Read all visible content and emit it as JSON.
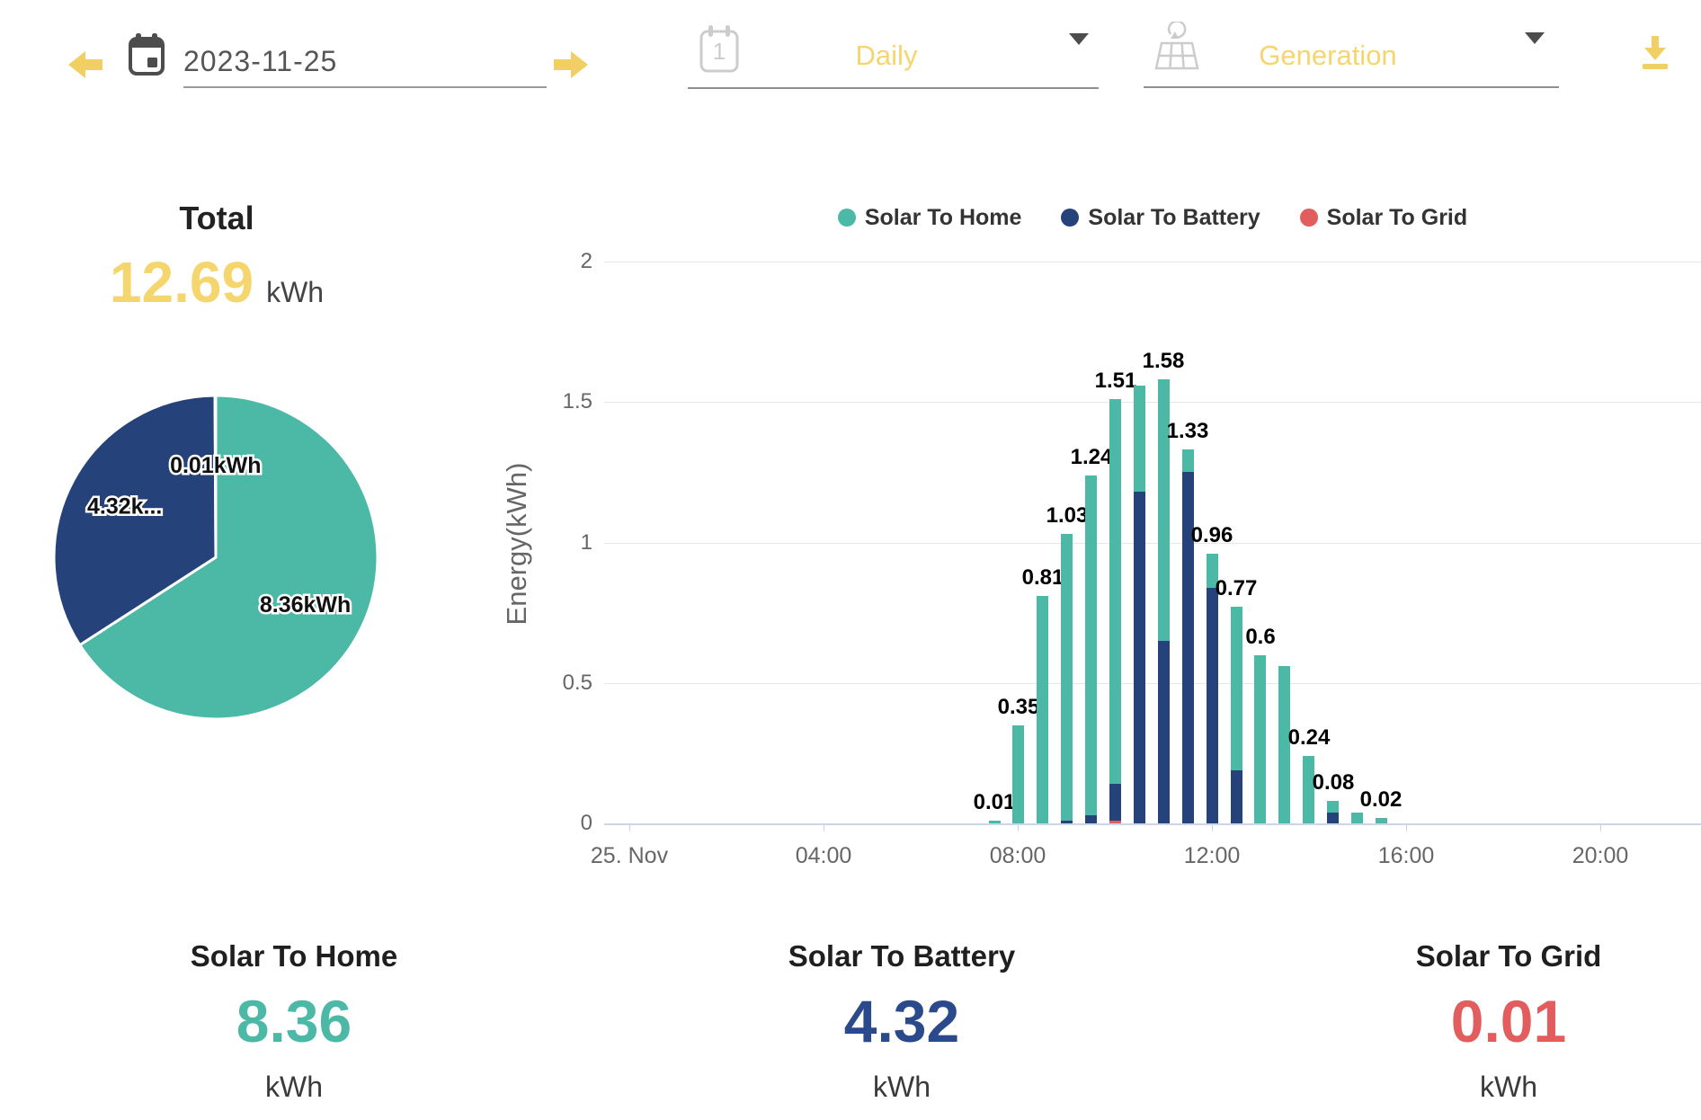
{
  "toolbar": {
    "date": "2023-11-25",
    "period": "Daily",
    "metric": "Generation"
  },
  "summary": {
    "title": "Total",
    "value": "12.69",
    "unit": "kWh"
  },
  "legend": [
    {
      "label": "Solar To Home",
      "color": "#4CB9A6"
    },
    {
      "label": "Solar To Battery",
      "color": "#25437A"
    },
    {
      "label": "Solar To Grid",
      "color": "#E25D5D"
    }
  ],
  "stats": [
    {
      "label": "Solar To Home",
      "value": "8.36",
      "unit": "kWh",
      "color": "#4CB9A6"
    },
    {
      "label": "Solar To Battery",
      "value": "4.32",
      "unit": "kWh",
      "color": "#2B4A8C"
    },
    {
      "label": "Solar To Grid",
      "value": "0.01",
      "unit": "kWh",
      "color": "#E25D5D"
    }
  ],
  "chart_data": [
    {
      "type": "pie",
      "title": "Total",
      "total_label": "12.69 kWh",
      "slices": [
        {
          "name": "Solar To Home",
          "value": 8.36,
          "label": "8.36kWh",
          "color": "#4CB9A6"
        },
        {
          "name": "Solar To Battery",
          "value": 4.32,
          "label": "4.32k...",
          "color": "#25437A"
        },
        {
          "name": "Solar To Grid",
          "value": 0.01,
          "label": "0.01kWh",
          "color": "#E25D5D"
        }
      ]
    },
    {
      "type": "bar",
      "stacked": true,
      "title": "",
      "xlabel": "",
      "ylabel": "Energy(kWh)",
      "ylim": [
        0,
        2
      ],
      "yticks": [
        0,
        0.5,
        1,
        1.5,
        2
      ],
      "xticks": [
        "25. Nov",
        "04:00",
        "08:00",
        "12:00",
        "16:00",
        "20:00"
      ],
      "grid": true,
      "legend_position": "top",
      "categories": [
        "07:30",
        "08:00",
        "08:30",
        "09:00",
        "09:30",
        "10:00",
        "10:30",
        "11:00",
        "11:30",
        "12:00",
        "12:30",
        "13:00",
        "13:30",
        "14:00",
        "14:30",
        "15:00",
        "15:30"
      ],
      "series": [
        {
          "name": "Solar To Grid",
          "color": "#E25D5D",
          "values": [
            0,
            0,
            0,
            0,
            0,
            0.01,
            0,
            0,
            0,
            0,
            0,
            0,
            0,
            0,
            0,
            0,
            0
          ]
        },
        {
          "name": "Solar To Battery",
          "color": "#25437A",
          "values": [
            0,
            0,
            0,
            0.01,
            0.03,
            0.13,
            1.18,
            0.65,
            1.25,
            0.84,
            0.19,
            0,
            0,
            0,
            0.04,
            0,
            0
          ]
        },
        {
          "name": "Solar To Home",
          "color": "#4CB9A6",
          "values": [
            0.01,
            0.35,
            0.81,
            1.02,
            1.21,
            1.37,
            0.38,
            0.93,
            0.08,
            0.12,
            0.58,
            0.6,
            0.56,
            0.24,
            0.04,
            0.04,
            0.02
          ]
        }
      ],
      "bar_labels": [
        "0.01",
        "0.35",
        "0.81",
        "1.03",
        "1.24",
        "1.51",
        "",
        "1.58",
        "1.33",
        "0.96",
        "0.77",
        "0.6",
        "",
        "0.24",
        "0.08",
        "",
        "0.02"
      ]
    }
  ],
  "colors": {
    "accent_yellow": "#F5D66E",
    "icon_yellow": "#F2CF62",
    "icon_gray_dark": "#4d4d4d",
    "icon_gray_light": "#cccccc",
    "axis_text": "#666666",
    "grid_line": "#e7e7e7",
    "axis_line": "#ccd6eb"
  }
}
